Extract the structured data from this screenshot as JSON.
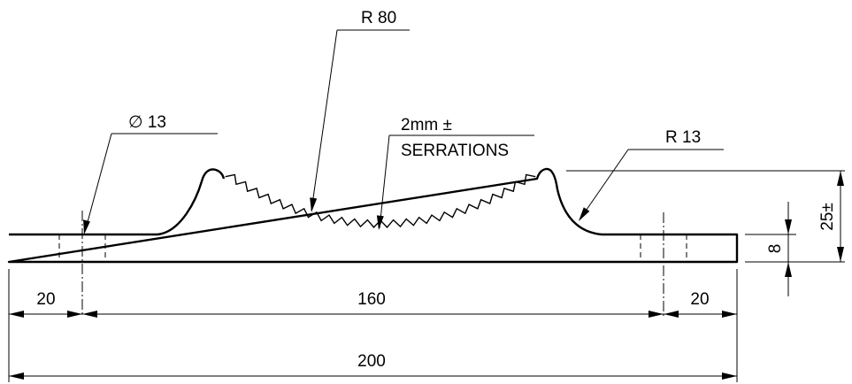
{
  "labels": {
    "radius_large": "R 80",
    "hole_diameter": "∅ 13",
    "serration_size": "2mm  ±",
    "serration_note": "SERRATIONS",
    "radius_small": "R 13",
    "plate_thickness": "8",
    "overall_height": "25±",
    "left_offset": "20",
    "hole_spacing": "160",
    "right_offset": "20",
    "overall_length": "200"
  }
}
